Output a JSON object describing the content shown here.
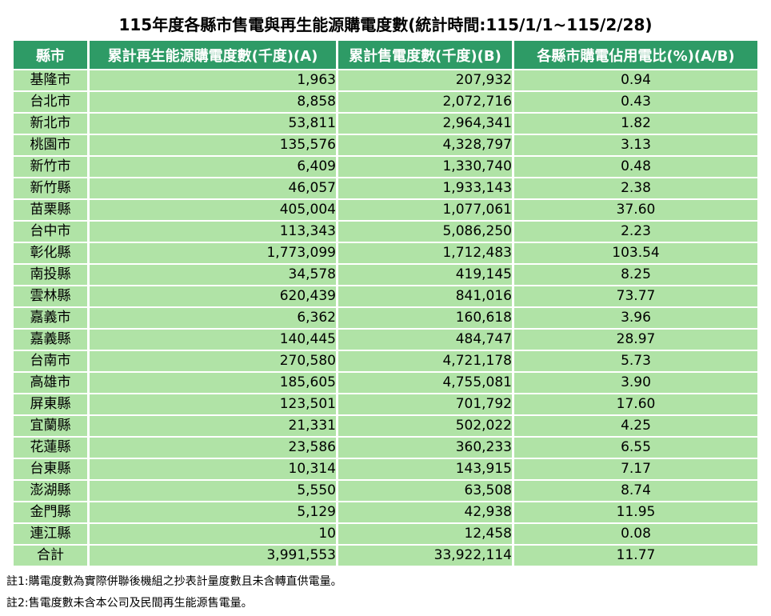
{
  "title": "115年度各縣市售電與再生能源購電度數(統計時間:115/1/1~115/2/28)",
  "chart_data": {
    "type": "table",
    "title": "115年度各縣市售電與再生能源購電度數(統計時間:115/1/1~115/2/28)",
    "columns": [
      "縣市",
      "累計再生能源購電度數(千度)(A)",
      "累計售電度數(千度)(B)",
      "各縣市購電佔用電比(%)(A/B)"
    ],
    "rows": [
      [
        "基隆市",
        "1,963",
        "207,932",
        "0.94"
      ],
      [
        "台北市",
        "8,858",
        "2,072,716",
        "0.43"
      ],
      [
        "新北市",
        "53,811",
        "2,964,341",
        "1.82"
      ],
      [
        "桃園市",
        "135,576",
        "4,328,797",
        "3.13"
      ],
      [
        "新竹市",
        "6,409",
        "1,330,740",
        "0.48"
      ],
      [
        "新竹縣",
        "46,057",
        "1,933,143",
        "2.38"
      ],
      [
        "苗栗縣",
        "405,004",
        "1,077,061",
        "37.60"
      ],
      [
        "台中市",
        "113,343",
        "5,086,250",
        "2.23"
      ],
      [
        "彰化縣",
        "1,773,099",
        "1,712,483",
        "103.54"
      ],
      [
        "南投縣",
        "34,578",
        "419,145",
        "8.25"
      ],
      [
        "雲林縣",
        "620,439",
        "841,016",
        "73.77"
      ],
      [
        "嘉義市",
        "6,362",
        "160,618",
        "3.96"
      ],
      [
        "嘉義縣",
        "140,445",
        "484,747",
        "28.97"
      ],
      [
        "台南市",
        "270,580",
        "4,721,178",
        "5.73"
      ],
      [
        "高雄市",
        "185,605",
        "4,755,081",
        "3.90"
      ],
      [
        "屏東縣",
        "123,501",
        "701,792",
        "17.60"
      ],
      [
        "宜蘭縣",
        "21,331",
        "502,022",
        "4.25"
      ],
      [
        "花蓮縣",
        "23,586",
        "360,233",
        "6.55"
      ],
      [
        "台東縣",
        "10,314",
        "143,915",
        "7.17"
      ],
      [
        "澎湖縣",
        "5,550",
        "63,508",
        "8.74"
      ],
      [
        "金門縣",
        "5,129",
        "42,938",
        "11.95"
      ],
      [
        "連江縣",
        "10",
        "12,458",
        "0.08"
      ],
      [
        "合計",
        "3,991,553",
        "33,922,114",
        "11.77"
      ]
    ],
    "total_row_label": "合計"
  },
  "notes": [
    "註1:購電度數為實際併聯後機組之抄表計量度數且未含轉直供電量。",
    "註2:售電度數未含本公司及民間再生能源售電量。"
  ],
  "colors": {
    "header_bg": "#2e9b66",
    "header_text": "#ffffff",
    "row_bg": "#b0e3a6",
    "grid_line": "#ffffff",
    "text": "#000000"
  }
}
